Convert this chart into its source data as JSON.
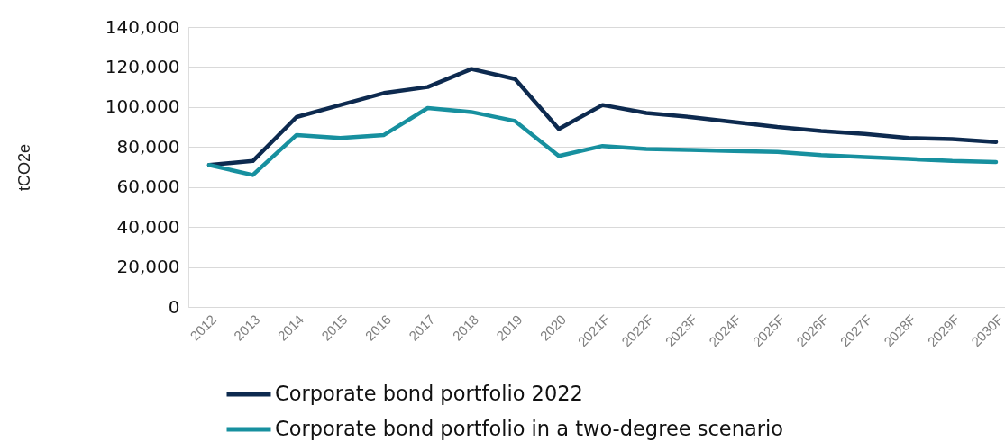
{
  "chart_data": {
    "type": "line",
    "ylabel": "tCO2e",
    "categories": [
      "2012",
      "2013",
      "2014",
      "2015",
      "2016",
      "2017",
      "2018",
      "2019",
      "2020",
      "2021F",
      "2022F",
      "2023F",
      "2024F",
      "2025F",
      "2026F",
      "2027F",
      "2028F",
      "2029F",
      "2030F"
    ],
    "series": [
      {
        "name": "Corporate bond portfolio 2022",
        "color": "#0d2a4f",
        "values": [
          71000,
          73000,
          95000,
          101000,
          107000,
          110000,
          119000,
          114000,
          89000,
          101000,
          97000,
          95000,
          92500,
          90000,
          88000,
          86500,
          84500,
          84000,
          82500
        ]
      },
      {
        "name": "Corporate bond portfolio in a two-degree scenario",
        "color": "#17909f",
        "values": [
          71000,
          66000,
          86000,
          84500,
          86000,
          99500,
          97500,
          93000,
          75500,
          80500,
          79000,
          78500,
          78000,
          77500,
          76000,
          75000,
          74000,
          73000,
          72500
        ]
      }
    ],
    "ylim": [
      0,
      140000
    ],
    "yticks": [
      0,
      {
        "value": 20000,
        "label": "20,000"
      },
      {
        "value": 40000,
        "label": "40,000"
      },
      {
        "value": 60000,
        "label": "60,000"
      },
      {
        "value": 80000,
        "label": "80,000"
      },
      {
        "value": 100000,
        "label": "100,000"
      },
      {
        "value": 120000,
        "label": "120,000"
      },
      {
        "value": 140000,
        "label": "140,000"
      }
    ],
    "grid": "y",
    "legend": "bottom left",
    "marker": "none",
    "line_style": "solid"
  }
}
